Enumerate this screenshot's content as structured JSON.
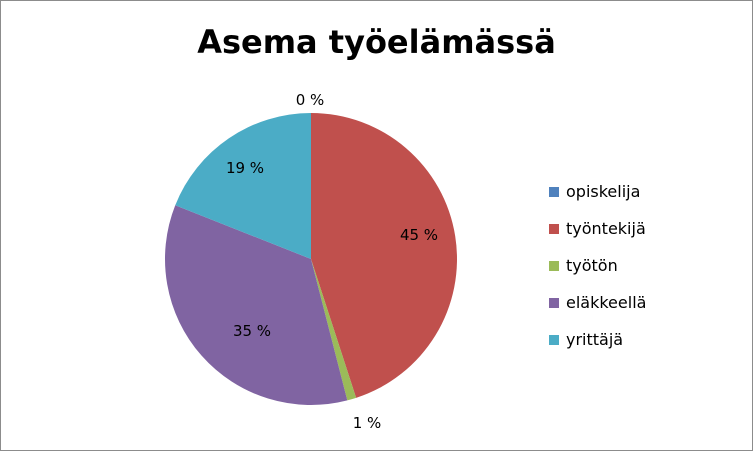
{
  "chart_data": {
    "type": "pie",
    "title": "Asema työelämässä",
    "legend_position": "right",
    "slices": [
      {
        "label": "opiskelija",
        "value": 0,
        "display": "0 %",
        "color": "#4F81BD"
      },
      {
        "label": "työntekijä",
        "value": 45,
        "display": "45 %",
        "color": "#C0504D"
      },
      {
        "label": "työtön",
        "value": 1,
        "display": "1 %",
        "color": "#9BBB59"
      },
      {
        "label": "eläkkeellä",
        "value": 35,
        "display": "35 %",
        "color": "#8064A2"
      },
      {
        "label": "yrittäjä",
        "value": 19,
        "display": "19 %",
        "color": "#4BACC6"
      }
    ]
  }
}
